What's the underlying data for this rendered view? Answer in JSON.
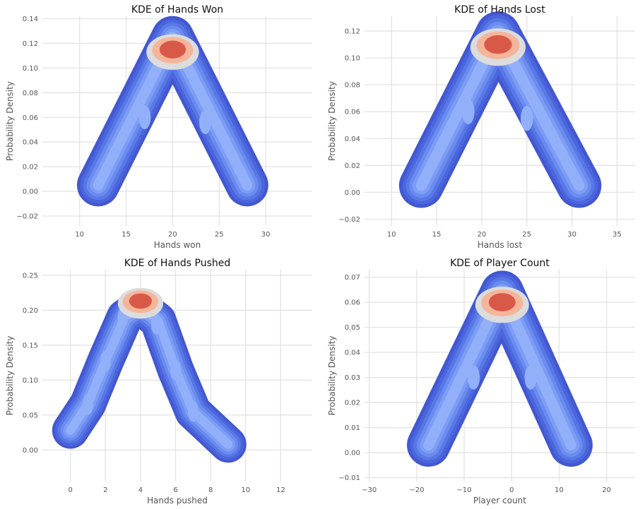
{
  "chart_data": [
    {
      "type": "kde",
      "title": "KDE of Hands Won",
      "xlabel": "Hands won",
      "ylabel": "Probability Density",
      "xlim": [
        6,
        35
      ],
      "ylim": [
        -0.028,
        0.142
      ],
      "xticks": [
        10,
        15,
        20,
        25,
        30
      ],
      "yticks": [
        -0.02,
        0.0,
        0.02,
        0.04,
        0.06,
        0.08,
        0.1,
        0.12,
        0.14
      ],
      "ytick_decimals": 2,
      "grid": true,
      "ridge": [
        [
          12,
          0.005
        ],
        [
          20,
          0.125
        ],
        [
          28,
          0.005
        ]
      ],
      "half_width": 1.2,
      "peak": [
        20,
        0.113
      ],
      "blobs": [
        [
          17,
          0.06
        ],
        [
          23.5,
          0.056
        ]
      ]
    },
    {
      "type": "kde",
      "title": "KDE of Hands Lost",
      "xlabel": "Hands lost",
      "ylabel": "Probability Density",
      "xlim": [
        7,
        37
      ],
      "ylim": [
        -0.025,
        0.131
      ],
      "xticks": [
        10,
        15,
        20,
        25,
        30,
        35
      ],
      "yticks": [
        -0.02,
        0.0,
        0.02,
        0.04,
        0.06,
        0.08,
        0.1,
        0.12
      ],
      "ytick_decimals": 2,
      "grid": true,
      "ridge": [
        [
          13.3,
          0.005
        ],
        [
          21.8,
          0.118
        ],
        [
          30.8,
          0.005
        ]
      ],
      "half_width": 1.3,
      "peak": [
        21.8,
        0.108
      ],
      "blobs": [
        [
          18.5,
          0.06
        ],
        [
          25,
          0.055
        ]
      ]
    },
    {
      "type": "kde",
      "title": "KDE of Hands Pushed",
      "xlabel": "Hands pushed",
      "ylabel": "Probability Density",
      "xlim": [
        -1.6,
        13.8
      ],
      "ylim": [
        -0.045,
        0.258
      ],
      "xticks": [
        0,
        2,
        4,
        6,
        8,
        10,
        12
      ],
      "yticks": [
        0.0,
        0.05,
        0.1,
        0.15,
        0.2,
        0.25
      ],
      "ytick_decimals": 2,
      "grid": true,
      "ridge": [
        [
          0,
          0.028
        ],
        [
          1,
          0.066
        ],
        [
          2,
          0.127
        ],
        [
          3.1,
          0.19
        ],
        [
          4,
          0.205
        ],
        [
          5,
          0.185
        ],
        [
          6,
          0.115
        ],
        [
          7,
          0.055
        ],
        [
          9,
          0.008
        ]
      ],
      "half_width": 0.55,
      "peak": [
        4,
        0.21
      ],
      "blobs": [
        [
          3,
          0.19
        ],
        [
          4.9,
          0.18
        ],
        [
          2,
          0.127
        ],
        [
          6,
          0.115
        ],
        [
          1,
          0.065
        ],
        [
          7,
          0.055
        ]
      ]
    },
    {
      "type": "kde",
      "title": "KDE of Player Count",
      "xlabel": "Player count",
      "ylabel": "Probability Density",
      "xlim": [
        -31,
        26
      ],
      "ylim": [
        -0.0115,
        0.073
      ],
      "xticks": [
        -30,
        -20,
        -10,
        0,
        10,
        20
      ],
      "yticks": [
        -0.01,
        0.0,
        0.01,
        0.02,
        0.03,
        0.04,
        0.05,
        0.06,
        0.07
      ],
      "ytick_decimals": 2,
      "grid": true,
      "ridge": [
        [
          -17.5,
          0.003
        ],
        [
          -2,
          0.064
        ],
        [
          12.5,
          0.003
        ]
      ],
      "half_width": 2.4,
      "peak": [
        -2,
        0.059
      ],
      "blobs": [
        [
          -8,
          0.03
        ],
        [
          4,
          0.03
        ]
      ]
    }
  ],
  "colors": {
    "levels": [
      "#4257d1",
      "#4b65dc",
      "#5878e6",
      "#6a8bef",
      "#7d9df5",
      "#92b0fa",
      "#dcdcdc",
      "#f5b59b",
      "#d95949"
    ],
    "grid": "#e3e3e3",
    "tick": "#555555",
    "title": "#111111"
  }
}
